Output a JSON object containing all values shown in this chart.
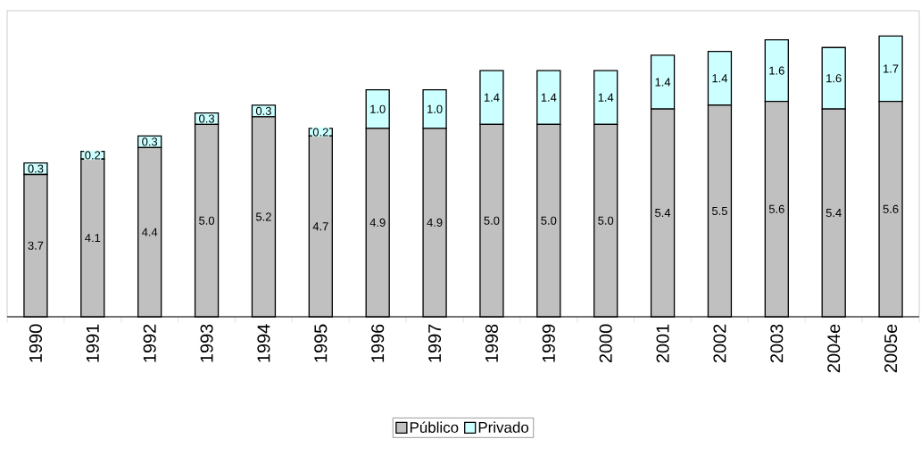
{
  "chart_data": {
    "type": "bar",
    "stacked": true,
    "legend": "bottom",
    "categories": [
      "1990",
      "1991",
      "1992",
      "1993",
      "1994",
      "1995",
      "1996",
      "1997",
      "1998",
      "1999",
      "2000",
      "2001",
      "2002",
      "2003",
      "2004e",
      "2005e"
    ],
    "series": [
      {
        "name": "Público",
        "color": "#c0c0c0",
        "values": [
          3.7,
          4.1,
          4.4,
          5.0,
          5.2,
          4.7,
          4.9,
          4.9,
          5.0,
          5.0,
          5.0,
          5.4,
          5.5,
          5.6,
          5.4,
          5.6
        ],
        "value_labels": [
          "3.7",
          "4.1",
          "4.4",
          "5.0",
          "5.2",
          "4.7",
          "4.9",
          "4.9",
          "5.0",
          "5.0",
          "5.0",
          "5.4",
          "5.5",
          "5.6",
          "5.4",
          "5.6"
        ]
      },
      {
        "name": "Privado",
        "color": "#ccffff",
        "values": [
          0.3,
          0.2,
          0.3,
          0.3,
          0.3,
          0.2,
          1.0,
          1.0,
          1.4,
          1.4,
          1.4,
          1.4,
          1.4,
          1.6,
          1.6,
          1.7
        ],
        "value_labels": [
          "0.3",
          "0.2",
          "0.3",
          "0.3",
          "0.3",
          "0.2",
          "1.0",
          "1.0",
          "1.4",
          "1.4",
          "1.4",
          "1.4",
          "1.4",
          "1.6",
          "1.6",
          "1.7"
        ]
      }
    ]
  }
}
